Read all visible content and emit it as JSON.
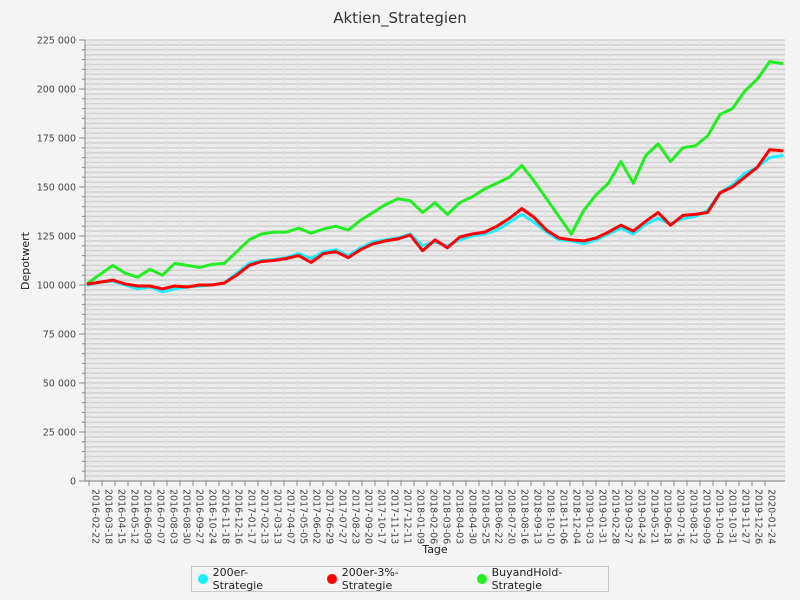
{
  "chart_data": {
    "type": "line",
    "title": "Aktien_Strategien",
    "xlabel": "Tage",
    "ylabel": "Depotwert",
    "ylim": [
      0,
      225000
    ],
    "yticks": [
      0,
      25000,
      50000,
      75000,
      100000,
      125000,
      150000,
      175000,
      200000,
      225000
    ],
    "ytick_labels": [
      "0",
      "25 000",
      "50 000",
      "75 000",
      "100 000",
      "125 000",
      "150 000",
      "175 000",
      "200 000",
      "225 000"
    ],
    "x_tick_labels": [
      "2016-02-22",
      "2016-03-18",
      "2016-04-15",
      "2016-05-12",
      "2016-06-09",
      "2016-07-07",
      "2016-08-03",
      "2016-08-30",
      "2016-09-27",
      "2016-10-24",
      "2016-11-18",
      "2016-12-16",
      "2017-01-17",
      "2017-02-13",
      "2017-03-13",
      "2017-04-07",
      "2017-05-05",
      "2017-06-02",
      "2017-06-29",
      "2017-07-27",
      "2017-08-23",
      "2017-09-20",
      "2017-10-17",
      "2017-11-13",
      "2017-12-11",
      "2018-01-09",
      "2018-02-06",
      "2018-03-06",
      "2018-04-03",
      "2018-04-30",
      "2018-05-25",
      "2018-06-22",
      "2018-07-20",
      "2018-08-16",
      "2018-09-13",
      "2018-10-10",
      "2018-11-06",
      "2018-12-04",
      "2019-01-03",
      "2019-01-31",
      "2019-02-28",
      "2019-03-27",
      "2019-04-24",
      "2019-05-21",
      "2019-06-18",
      "2019-07-16",
      "2019-08-12",
      "2019-09-09",
      "2019-10-04",
      "2019-10-31",
      "2019-11-27",
      "2019-12-26",
      "2020-01-24"
    ],
    "grid": true,
    "legend_position": "bottom",
    "series": [
      {
        "name": "200er-Strategie",
        "color": "#1aeeff",
        "values": [
          100000,
          101500,
          102000,
          100000,
          98000,
          99000,
          96500,
          98000,
          99000,
          99500,
          100000,
          101000,
          106000,
          111000,
          112500,
          113000,
          114000,
          116000,
          113500,
          117000,
          118000,
          115000,
          119000,
          122000,
          123000,
          124000,
          126000,
          120000,
          122000,
          120000,
          123000,
          125000,
          126000,
          128000,
          132000,
          136000,
          132000,
          127000,
          123000,
          122500,
          121000,
          123000,
          126000,
          129000,
          126000,
          131000,
          134000,
          131000,
          134000,
          135000,
          138000,
          147000,
          151000,
          157000,
          160000,
          165000,
          166000
        ]
      },
      {
        "name": "200er-3%-Strategie",
        "color": "#ff0000",
        "values": [
          100500,
          101500,
          102500,
          100500,
          99500,
          99500,
          98000,
          99500,
          99000,
          100000,
          100000,
          101000,
          105000,
          110000,
          112000,
          112500,
          113500,
          115000,
          111500,
          116000,
          117000,
          114000,
          118000,
          121000,
          122500,
          123500,
          125500,
          117500,
          123000,
          119000,
          124500,
          126000,
          127000,
          130000,
          134000,
          139000,
          134500,
          128000,
          124000,
          123000,
          122500,
          124000,
          127000,
          130500,
          127500,
          132500,
          137000,
          130500,
          135500,
          136000,
          137000,
          147000,
          150000,
          155000,
          160000,
          169000,
          168500
        ]
      },
      {
        "name": "BuyandHold-Strategie",
        "color": "#22ee22",
        "values": [
          101000,
          105500,
          110000,
          106000,
          104000,
          108000,
          105000,
          111000,
          110000,
          109000,
          110500,
          111000,
          117000,
          123000,
          126000,
          127000,
          127000,
          129000,
          126500,
          128500,
          130000,
          128000,
          133000,
          137000,
          141000,
          144000,
          143000,
          137000,
          142000,
          136000,
          142000,
          145000,
          149000,
          152000,
          155000,
          161000,
          153000,
          144000,
          135000,
          126000,
          138000,
          146000,
          152000,
          163000,
          152000,
          166000,
          172000,
          163000,
          170000,
          171000,
          176000,
          187000,
          190000,
          199000,
          205000,
          214000,
          213000
        ]
      }
    ]
  }
}
